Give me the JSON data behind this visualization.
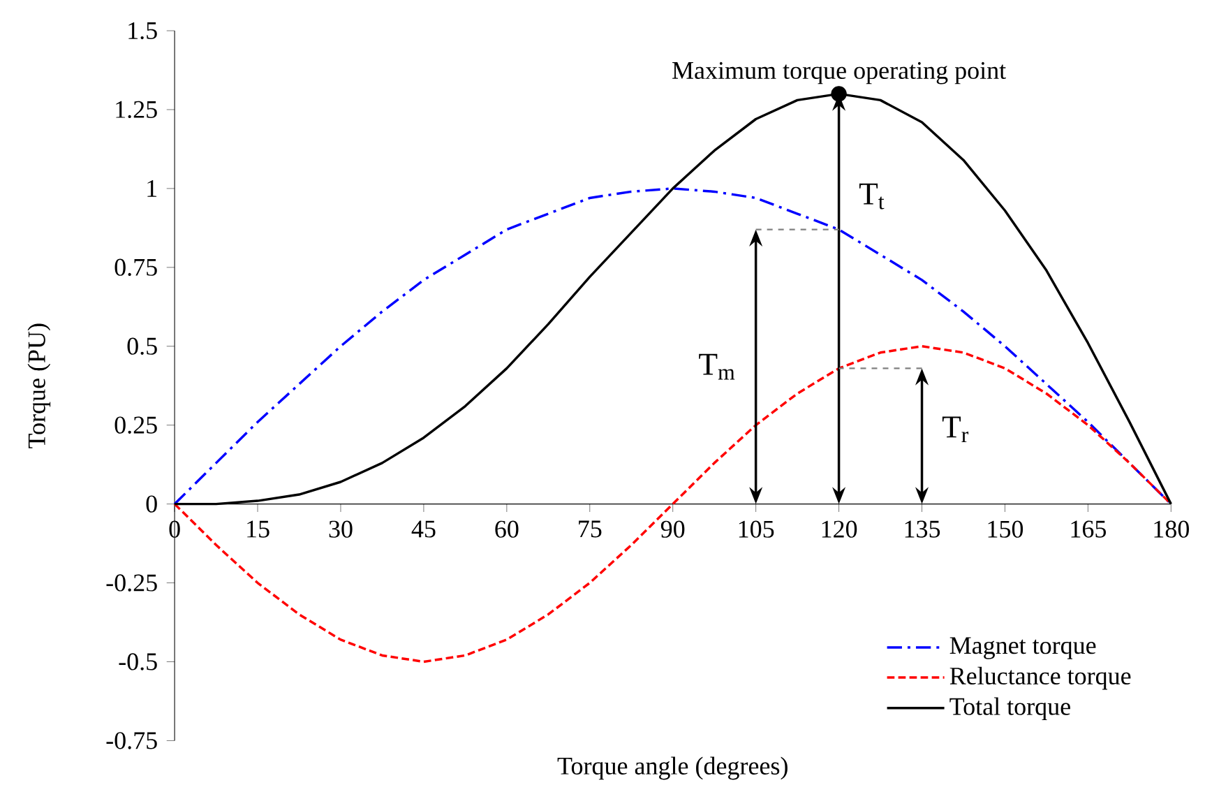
{
  "chart_data": {
    "type": "line",
    "xlabel": "Torque angle (degrees)",
    "ylabel": "Torque (PU)",
    "x": [
      0,
      7.5,
      15,
      22.5,
      30,
      37.5,
      45,
      52.5,
      60,
      67.5,
      75,
      82.5,
      90,
      97.5,
      105,
      112.5,
      120,
      127.5,
      135,
      142.5,
      150,
      157.5,
      165,
      172.5,
      180
    ],
    "series": [
      {
        "name": "Magnet torque",
        "color": "#0000ff",
        "line_style": "dashdot",
        "values": [
          0,
          0.13,
          0.26,
          0.38,
          0.5,
          0.61,
          0.71,
          0.79,
          0.87,
          0.92,
          0.97,
          0.99,
          1,
          0.99,
          0.97,
          0.92,
          0.87,
          0.79,
          0.71,
          0.61,
          0.5,
          0.38,
          0.26,
          0.13,
          0
        ]
      },
      {
        "name": "Reluctance torque",
        "color": "#ff0000",
        "line_style": "dashed",
        "values": [
          0,
          -0.13,
          -0.25,
          -0.35,
          -0.43,
          -0.48,
          -0.5,
          -0.48,
          -0.43,
          -0.35,
          -0.25,
          -0.13,
          0,
          0.13,
          0.25,
          0.35,
          0.43,
          0.48,
          0.5,
          0.48,
          0.43,
          0.35,
          0.25,
          0.13,
          0
        ]
      },
      {
        "name": "Total torque",
        "color": "#000000",
        "line_style": "solid",
        "values": [
          0,
          0,
          0.01,
          0.03,
          0.07,
          0.13,
          0.21,
          0.31,
          0.43,
          0.57,
          0.72,
          0.86,
          1,
          1.12,
          1.22,
          1.28,
          1.3,
          1.28,
          1.21,
          1.09,
          0.93,
          0.74,
          0.51,
          0.26,
          0
        ]
      },
      {
        "type": "scatter",
        "x": [
          120
        ],
        "color": "#000000",
        "marker": "circle",
        "values": [
          1.3
        ]
      }
    ],
    "xlim": [
      0,
      180
    ],
    "xticks": [
      0,
      15,
      30,
      45,
      60,
      75,
      90,
      105,
      120,
      135,
      150,
      165,
      180
    ],
    "ylim": [
      -0.75,
      1.5
    ],
    "yticks": [
      -0.75,
      -0.5,
      -0.25,
      0,
      0.25,
      0.5,
      0.75,
      1,
      1.25,
      1.5
    ],
    "grid": false,
    "legend": "bottom right",
    "marker": "none",
    "annotations": [
      {
        "text": "Maximum torque operating point",
        "x": 120,
        "y": 1.3
      },
      "T$_{t}$",
      "T$_{m}$",
      "T$_{r}$"
    ]
  }
}
